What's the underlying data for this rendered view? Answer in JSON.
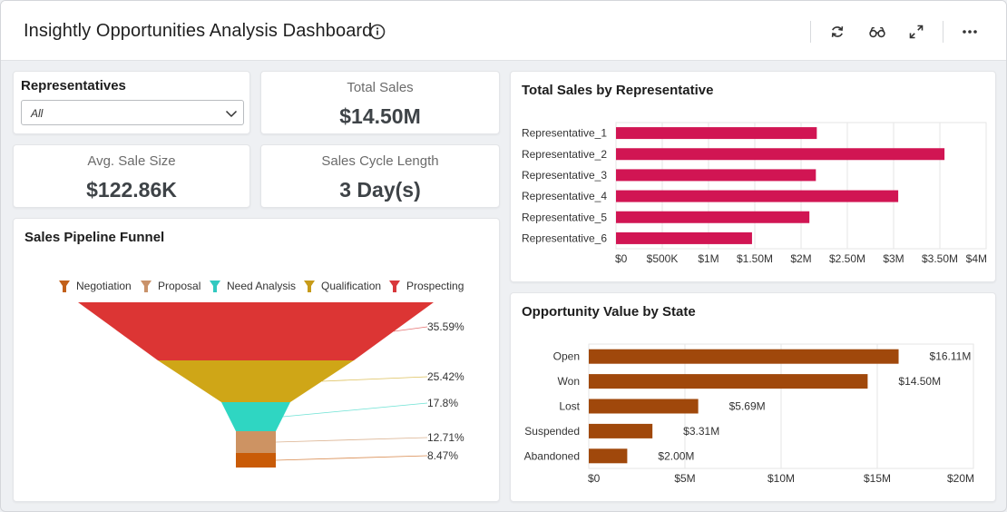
{
  "header": {
    "title": "Insightly Opportunities Analysis Dashboard",
    "icons": [
      "info-icon",
      "refresh-icon",
      "glasses-icon",
      "expand-icon",
      "more-icon"
    ]
  },
  "filter": {
    "label": "Representatives",
    "selected": "All"
  },
  "kpis": {
    "total_sales": {
      "label": "Total Sales",
      "value": "$14.50M"
    },
    "avg_sale": {
      "label": "Avg. Sale Size",
      "value": "$122.86K"
    },
    "cycle": {
      "label": "Sales Cycle Length",
      "value": "3 Day(s)"
    }
  },
  "colors": {
    "rep_bar": "#d11553",
    "state_bar": "#a0480b",
    "funnel": [
      "#dc3534",
      "#cfa617",
      "#2fd6c2",
      "#cd9363",
      "#c95b07"
    ],
    "legend": [
      "#c2601a",
      "#c9926a",
      "#32c9c0",
      "#c79b19",
      "#d8383c"
    ]
  },
  "chart_data": [
    {
      "id": "funnel",
      "type": "funnel",
      "title": "Sales Pipeline Funnel",
      "legend": [
        "Negotiation",
        "Proposal",
        "Need Analysis",
        "Qualification",
        "Prospecting"
      ],
      "stages": [
        "Prospecting",
        "Qualification",
        "Need Analysis",
        "Proposal",
        "Negotiation"
      ],
      "values": [
        35.59,
        25.42,
        17.8,
        12.71,
        8.47
      ],
      "labels": [
        "35.59%",
        "25.42%",
        "17.8%",
        "12.71%",
        "8.47%"
      ]
    },
    {
      "id": "reps",
      "type": "bar",
      "orientation": "horizontal",
      "title": "Total Sales by Representative",
      "categories": [
        "Representative_1",
        "Representative_2",
        "Representative_3",
        "Representative_4",
        "Representative_5",
        "Representative_6"
      ],
      "values": [
        2.17,
        3.55,
        2.16,
        3.05,
        2.09,
        1.47
      ],
      "unit": "$M",
      "xlim": [
        0,
        4
      ],
      "ticks": [
        0,
        0.5,
        1,
        1.5,
        2,
        2.5,
        3,
        3.5,
        4
      ],
      "tick_labels": [
        "$0",
        "$500K",
        "$1M",
        "$1.50M",
        "$2M",
        "$2.50M",
        "$3M",
        "$3.50M",
        "$4M"
      ]
    },
    {
      "id": "states",
      "type": "bar",
      "orientation": "horizontal",
      "title": "Opportunity Value by State",
      "categories": [
        "Open",
        "Won",
        "Lost",
        "Suspended",
        "Abandoned"
      ],
      "values": [
        16.11,
        14.5,
        5.69,
        3.31,
        2.0
      ],
      "data_labels": [
        "$16.11M",
        "$14.50M",
        "$5.69M",
        "$3.31M",
        "$2.00M"
      ],
      "unit": "$M",
      "xlim": [
        0,
        20
      ],
      "ticks": [
        0,
        5,
        10,
        15,
        20
      ],
      "tick_labels": [
        "$0",
        "$5M",
        "$10M",
        "$15M",
        "$20M"
      ]
    }
  ]
}
